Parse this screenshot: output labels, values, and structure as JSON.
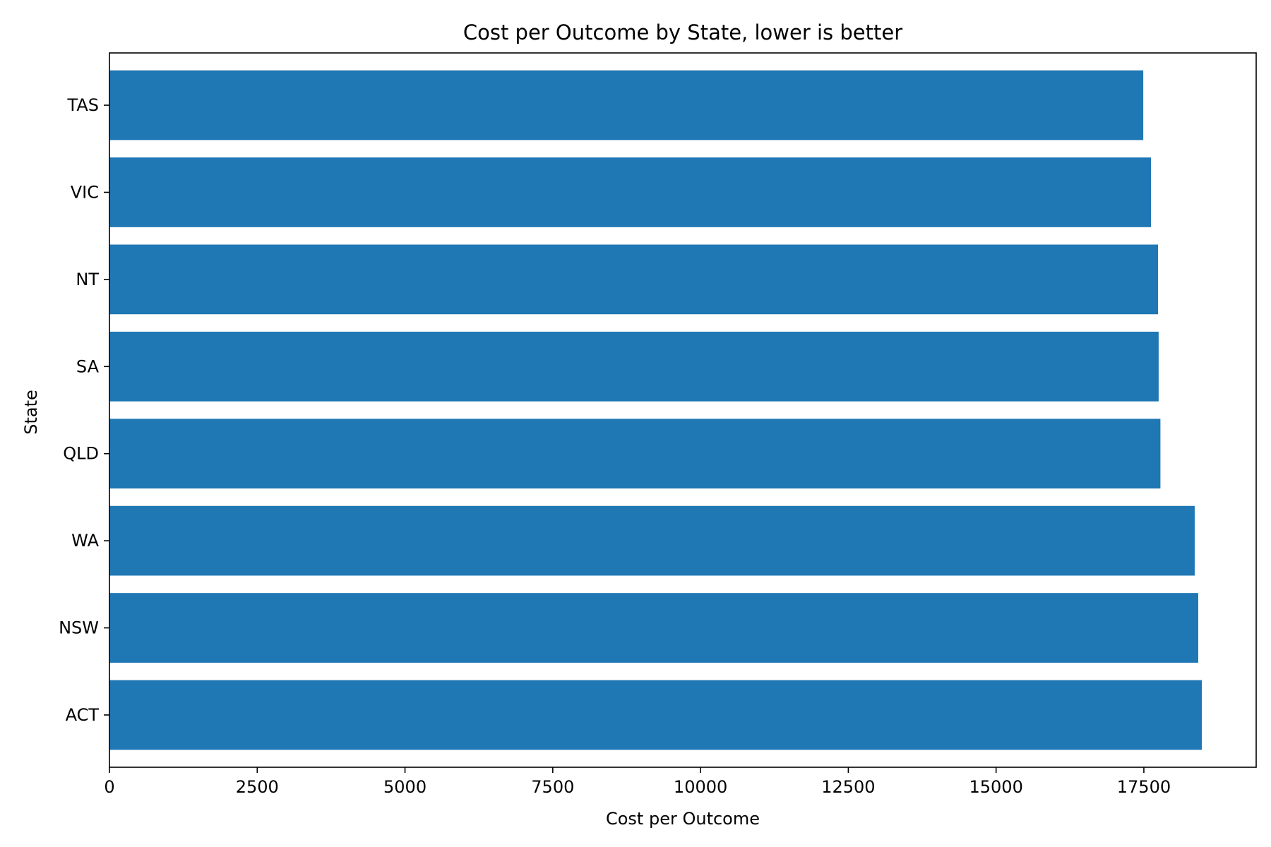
{
  "chart_data": {
    "type": "bar",
    "orientation": "horizontal",
    "title": "Cost per Outcome by State, lower is better",
    "xlabel": "Cost per Outcome",
    "ylabel": "State",
    "categories": [
      "ACT",
      "NSW",
      "WA",
      "QLD",
      "SA",
      "NT",
      "VIC",
      "TAS"
    ],
    "values": [
      18480,
      18420,
      18360,
      17780,
      17750,
      17740,
      17620,
      17490
    ],
    "xlim": [
      0,
      19400
    ],
    "xticks": [
      0,
      2500,
      5000,
      7500,
      10000,
      12500,
      15000,
      17500
    ],
    "grid": false,
    "legend": "none",
    "colors": {
      "bar": "#1f77b4",
      "axis": "#000000",
      "background": "#ffffff"
    }
  }
}
